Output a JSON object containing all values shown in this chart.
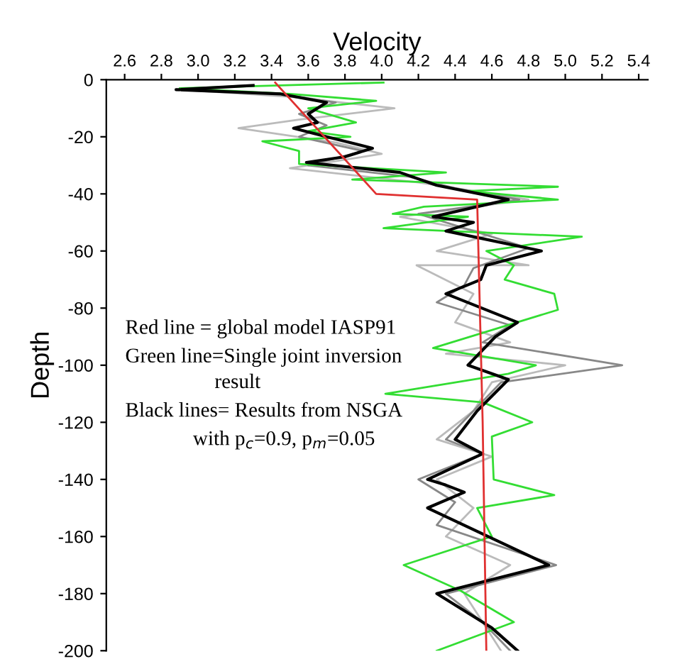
{
  "chart_data": {
    "type": "line",
    "xlabel": "Velocity",
    "ylabel": "Depth",
    "xlim": [
      2.5,
      5.45
    ],
    "ylim": [
      -200,
      0
    ],
    "xticks": [
      {
        "value": 2.6,
        "label": "2.6"
      },
      {
        "value": 2.8,
        "label": "2.8"
      },
      {
        "value": 3.0,
        "label": "3.0"
      },
      {
        "value": 3.2,
        "label": "3.2"
      },
      {
        "value": 3.4,
        "label": "3.4"
      },
      {
        "value": 3.6,
        "label": "3.6"
      },
      {
        "value": 3.8,
        "label": "3.8"
      },
      {
        "value": 4.0,
        "label": "4.0"
      },
      {
        "value": 4.2,
        "label": "4.2"
      },
      {
        "value": 4.4,
        "label": "4.4"
      },
      {
        "value": 4.6,
        "label": "4.6"
      },
      {
        "value": 4.8,
        "label": "4.8"
      },
      {
        "value": 5.0,
        "label": "5.0"
      },
      {
        "value": 5.2,
        "label": "5.2"
      },
      {
        "value": 5.4,
        "label": "5.4"
      }
    ],
    "yticks": [
      0,
      -20,
      -40,
      -60,
      -80,
      -100,
      -120,
      -140,
      -160,
      -180,
      -200
    ],
    "grid": false,
    "legend": false,
    "marker": "none",
    "line_style": "solid",
    "series": [
      {
        "color": "#bbbbbb",
        "x": [
          3.25,
          2.9,
          3.5,
          4.07,
          3.55,
          3.22,
          3.75,
          4.0,
          3.5,
          4.2,
          4.8,
          4.1,
          4.6,
          4.3,
          4.8,
          4.19,
          4.5,
          4.4,
          4.7,
          4.35,
          5.0,
          4.6,
          4.5,
          4.3,
          4.6,
          4.3,
          4.5,
          4.35,
          4.7,
          4.45,
          4.55,
          4.65
        ],
        "values": [
          -2,
          -3.5,
          -6,
          -10,
          -14,
          -17,
          -22,
          -26,
          -31,
          -36,
          -42,
          -48,
          -54,
          -60,
          -65,
          -65,
          -75,
          -85,
          -92,
          -96,
          -100,
          -106,
          -116,
          -126,
          -132,
          -140,
          -150,
          -160,
          -170,
          -180,
          -190,
          -200
        ]
      },
      {
        "color": "#888888",
        "x": [
          3.3,
          2.9,
          3.45,
          3.75,
          3.55,
          3.7,
          3.55,
          3.9,
          3.6,
          4.15,
          4.4,
          4.75,
          4.2,
          4.45,
          4.8,
          4.5,
          4.45,
          4.3,
          4.7,
          4.55,
          5.31,
          4.65,
          4.5,
          4.35,
          4.55,
          4.2,
          4.4,
          4.3,
          4.95,
          4.35,
          4.55,
          4.7
        ],
        "values": [
          -2,
          -3.5,
          -5,
          -8,
          -12,
          -16,
          -20,
          -25,
          -30,
          -34,
          -38,
          -42,
          -47,
          -52,
          -59,
          -66,
          -72,
          -78,
          -86,
          -92,
          -100,
          -106,
          -116,
          -126,
          -131,
          -140,
          -148,
          -156,
          -170,
          -180,
          -190,
          -200
        ]
      },
      {
        "color": "#33dd33",
        "x": [
          4.01,
          2.9,
          3.5,
          3.97,
          3.6,
          3.86,
          3.6,
          3.83,
          3.35,
          3.55,
          3.55,
          4.35,
          3.84,
          4.96,
          4.47,
          4.96,
          4.23,
          4.06,
          4.47,
          4.01,
          5.09,
          4.57,
          4.72,
          4.67,
          4.94,
          4.96,
          4.28,
          4.84,
          4.69,
          4.02,
          4.55,
          4.82,
          4.6,
          4.61,
          4.94,
          4.52,
          4.6,
          4.12,
          4.43,
          4.72,
          4.3
        ],
        "values": [
          -1,
          -3,
          -5,
          -7.4,
          -10,
          -15,
          -18,
          -20,
          -21.6,
          -25,
          -29.5,
          -32.5,
          -35,
          -37.5,
          -39,
          -42,
          -44.5,
          -47,
          -48,
          -52,
          -55,
          -60,
          -65,
          -70,
          -75,
          -80.6,
          -94,
          -100,
          -103,
          -110,
          -113,
          -120,
          -125,
          -140,
          -145.5,
          -150,
          -160,
          -170,
          -179,
          -190,
          -200
        ]
      },
      {
        "color": "#000000",
        "x": [
          3.3,
          2.88,
          3.45,
          3.7,
          3.6,
          3.65,
          3.52,
          3.7,
          3.95,
          3.8,
          3.59,
          4.1,
          4.3,
          4.69,
          4.28,
          4.5,
          4.35,
          4.87,
          4.57,
          4.54,
          4.35,
          4.74,
          4.62,
          4.47,
          4.69,
          4.52,
          4.4,
          4.55,
          4.25,
          4.35,
          4.45,
          4.25,
          4.91,
          4.3,
          4.6,
          4.74
        ],
        "values": [
          -2,
          -3.5,
          -5,
          -8,
          -12,
          -15,
          -17,
          -20,
          -24,
          -27,
          -29,
          -32.5,
          -37,
          -42,
          -48,
          -50,
          -53,
          -60,
          -65,
          -70,
          -75,
          -85,
          -90,
          -100,
          -105,
          -116,
          -126,
          -131,
          -140,
          -142,
          -144.5,
          -150,
          -170,
          -180,
          -192,
          -200
        ]
      },
      {
        "color": "#e03030",
        "x": [
          3.42,
          3.97,
          4.52,
          4.55,
          4.57
        ],
        "values": [
          -1,
          -40,
          -42,
          -120,
          -200
        ]
      }
    ],
    "annotations": [
      "Red line = global model IASP91",
      "Green line=Single joint inversion",
      "result",
      "Black lines= Results from NSGA",
      "with p$_{c}$=0.9, p$_{m}$=0.05"
    ]
  }
}
